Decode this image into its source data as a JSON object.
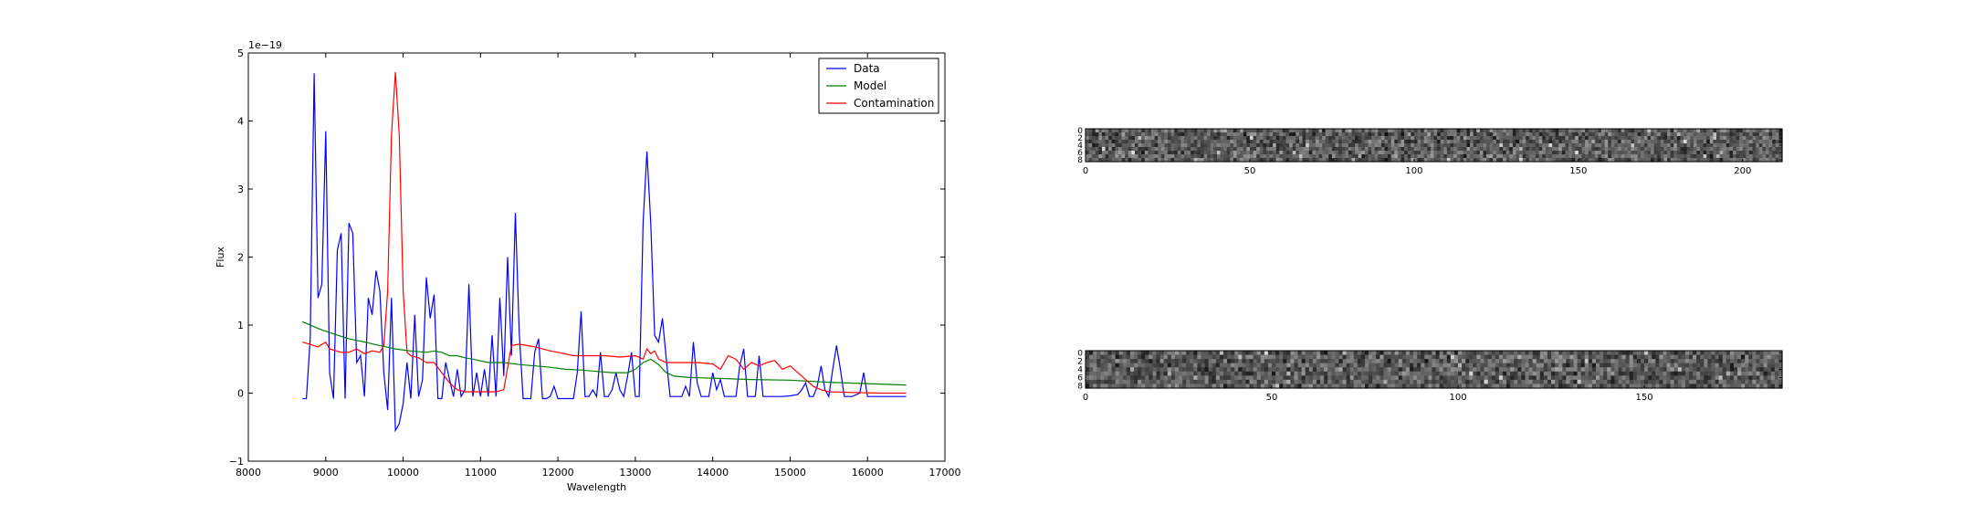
{
  "chart_data": [
    {
      "type": "line",
      "title": "",
      "xlabel": "Wavelength",
      "ylabel": "Flux",
      "y_offset_text": "1e−19",
      "xlim": [
        8000,
        17000
      ],
      "ylim": [
        -1,
        5
      ],
      "x_ticks": [
        8000,
        9000,
        10000,
        11000,
        12000,
        13000,
        14000,
        15000,
        16000,
        17000
      ],
      "y_ticks": [
        -1,
        0,
        1,
        2,
        3,
        4,
        5
      ],
      "grid": false,
      "legend_position": "top-right",
      "series": [
        {
          "name": "Data",
          "color": "#0000ff",
          "points": [
            [
              8700,
              -0.08
            ],
            [
              8750,
              -0.08
            ],
            [
              8800,
              0.8
            ],
            [
              8850,
              4.7
            ],
            [
              8900,
              1.4
            ],
            [
              8950,
              1.6
            ],
            [
              9000,
              3.85
            ],
            [
              9050,
              0.3
            ],
            [
              9100,
              -0.08
            ],
            [
              9150,
              2.1
            ],
            [
              9200,
              2.35
            ],
            [
              9250,
              -0.08
            ],
            [
              9300,
              2.5
            ],
            [
              9350,
              2.35
            ],
            [
              9400,
              0.45
            ],
            [
              9450,
              0.55
            ],
            [
              9500,
              -0.05
            ],
            [
              9550,
              1.4
            ],
            [
              9600,
              1.15
            ],
            [
              9650,
              1.8
            ],
            [
              9700,
              1.5
            ],
            [
              9750,
              0.3
            ],
            [
              9800,
              -0.25
            ],
            [
              9850,
              1.4
            ],
            [
              9900,
              -0.55
            ],
            [
              9950,
              -0.45
            ],
            [
              10000,
              -0.15
            ],
            [
              10050,
              0.45
            ],
            [
              10100,
              -0.08
            ],
            [
              10150,
              1.15
            ],
            [
              10200,
              -0.05
            ],
            [
              10250,
              0.2
            ],
            [
              10300,
              1.7
            ],
            [
              10350,
              1.1
            ],
            [
              10400,
              1.45
            ],
            [
              10450,
              -0.08
            ],
            [
              10500,
              -0.08
            ],
            [
              10550,
              0.45
            ],
            [
              10600,
              0.2
            ],
            [
              10650,
              -0.05
            ],
            [
              10700,
              0.35
            ],
            [
              10750,
              -0.05
            ],
            [
              10800,
              0.05
            ],
            [
              10850,
              1.6
            ],
            [
              10900,
              -0.05
            ],
            [
              10950,
              0.3
            ],
            [
              11000,
              -0.05
            ],
            [
              11050,
              0.35
            ],
            [
              11100,
              -0.05
            ],
            [
              11150,
              0.85
            ],
            [
              11200,
              -0.05
            ],
            [
              11250,
              1.4
            ],
            [
              11300,
              0.25
            ],
            [
              11350,
              2.0
            ],
            [
              11400,
              0.55
            ],
            [
              11450,
              2.65
            ],
            [
              11500,
              0.9
            ],
            [
              11550,
              -0.08
            ],
            [
              11600,
              -0.08
            ],
            [
              11650,
              -0.08
            ],
            [
              11700,
              0.6
            ],
            [
              11750,
              0.8
            ],
            [
              11800,
              -0.08
            ],
            [
              11850,
              -0.08
            ],
            [
              11900,
              -0.05
            ],
            [
              11950,
              0.1
            ],
            [
              12000,
              -0.08
            ],
            [
              12100,
              -0.08
            ],
            [
              12200,
              -0.08
            ],
            [
              12250,
              0.3
            ],
            [
              12300,
              1.2
            ],
            [
              12350,
              -0.05
            ],
            [
              12400,
              -0.05
            ],
            [
              12450,
              0.05
            ],
            [
              12500,
              -0.05
            ],
            [
              12550,
              0.6
            ],
            [
              12600,
              -0.05
            ],
            [
              12650,
              -0.05
            ],
            [
              12700,
              0.05
            ],
            [
              12750,
              0.3
            ],
            [
              12800,
              0.05
            ],
            [
              12850,
              -0.05
            ],
            [
              12900,
              0.25
            ],
            [
              12950,
              0.6
            ],
            [
              13000,
              -0.05
            ],
            [
              13050,
              -0.05
            ],
            [
              13100,
              2.5
            ],
            [
              13150,
              3.55
            ],
            [
              13200,
              2.5
            ],
            [
              13250,
              0.85
            ],
            [
              13300,
              0.75
            ],
            [
              13350,
              1.1
            ],
            [
              13400,
              0.5
            ],
            [
              13450,
              -0.05
            ],
            [
              13500,
              -0.05
            ],
            [
              13600,
              -0.05
            ],
            [
              13650,
              0.1
            ],
            [
              13700,
              -0.05
            ],
            [
              13750,
              0.75
            ],
            [
              13800,
              0.15
            ],
            [
              13850,
              -0.05
            ],
            [
              13900,
              -0.05
            ],
            [
              13950,
              -0.05
            ],
            [
              14000,
              0.3
            ],
            [
              14050,
              0.05
            ],
            [
              14100,
              0.2
            ],
            [
              14150,
              -0.05
            ],
            [
              14200,
              -0.05
            ],
            [
              14300,
              -0.05
            ],
            [
              14350,
              0.4
            ],
            [
              14400,
              0.65
            ],
            [
              14450,
              -0.05
            ],
            [
              14550,
              -0.05
            ],
            [
              14600,
              0.55
            ],
            [
              14650,
              -0.05
            ],
            [
              14750,
              -0.05
            ],
            [
              14900,
              -0.05
            ],
            [
              15000,
              -0.04
            ],
            [
              15100,
              -0.02
            ],
            [
              15150,
              0.05
            ],
            [
              15200,
              0.15
            ],
            [
              15250,
              -0.05
            ],
            [
              15300,
              -0.05
            ],
            [
              15350,
              0.1
            ],
            [
              15400,
              0.4
            ],
            [
              15450,
              0.05
            ],
            [
              15500,
              -0.05
            ],
            [
              15550,
              0.35
            ],
            [
              15600,
              0.7
            ],
            [
              15650,
              0.35
            ],
            [
              15700,
              -0.05
            ],
            [
              15800,
              -0.05
            ],
            [
              15900,
              0.0
            ],
            [
              15950,
              0.3
            ],
            [
              16000,
              -0.05
            ],
            [
              16050,
              -0.05
            ],
            [
              16150,
              -0.05
            ],
            [
              16300,
              -0.05
            ],
            [
              16500,
              -0.05
            ]
          ]
        },
        {
          "name": "Model",
          "color": "#008000",
          "points": [
            [
              8700,
              1.05
            ],
            [
              8900,
              0.95
            ],
            [
              9100,
              0.87
            ],
            [
              9300,
              0.8
            ],
            [
              9500,
              0.75
            ],
            [
              9700,
              0.7
            ],
            [
              9900,
              0.65
            ],
            [
              10100,
              0.62
            ],
            [
              10300,
              0.6
            ],
            [
              10400,
              0.62
            ],
            [
              10500,
              0.6
            ],
            [
              10600,
              0.55
            ],
            [
              10700,
              0.55
            ],
            [
              10800,
              0.52
            ],
            [
              10900,
              0.5
            ],
            [
              11100,
              0.45
            ],
            [
              11300,
              0.45
            ],
            [
              11500,
              0.42
            ],
            [
              11700,
              0.4
            ],
            [
              11900,
              0.38
            ],
            [
              12100,
              0.35
            ],
            [
              12300,
              0.34
            ],
            [
              12500,
              0.32
            ],
            [
              12700,
              0.3
            ],
            [
              12900,
              0.3
            ],
            [
              13000,
              0.35
            ],
            [
              13100,
              0.45
            ],
            [
              13200,
              0.5
            ],
            [
              13300,
              0.42
            ],
            [
              13400,
              0.3
            ],
            [
              13500,
              0.25
            ],
            [
              13700,
              0.23
            ],
            [
              14000,
              0.22
            ],
            [
              14500,
              0.2
            ],
            [
              15000,
              0.19
            ],
            [
              15500,
              0.16
            ],
            [
              16000,
              0.14
            ],
            [
              16500,
              0.12
            ]
          ]
        },
        {
          "name": "Contamination",
          "color": "#ff0000",
          "points": [
            [
              8700,
              0.75
            ],
            [
              8900,
              0.68
            ],
            [
              9000,
              0.75
            ],
            [
              9050,
              0.65
            ],
            [
              9200,
              0.6
            ],
            [
              9300,
              0.6
            ],
            [
              9400,
              0.65
            ],
            [
              9500,
              0.58
            ],
            [
              9600,
              0.62
            ],
            [
              9700,
              0.6
            ],
            [
              9750,
              0.7
            ],
            [
              9800,
              1.5
            ],
            [
              9850,
              3.8
            ],
            [
              9900,
              4.72
            ],
            [
              9950,
              3.8
            ],
            [
              10000,
              1.5
            ],
            [
              10050,
              0.6
            ],
            [
              10100,
              0.55
            ],
            [
              10200,
              0.52
            ],
            [
              10300,
              0.45
            ],
            [
              10400,
              0.45
            ],
            [
              10500,
              0.3
            ],
            [
              10600,
              0.15
            ],
            [
              10700,
              0.05
            ],
            [
              10800,
              0.02
            ],
            [
              11000,
              0.02
            ],
            [
              11200,
              0.02
            ],
            [
              11300,
              0.05
            ],
            [
              11400,
              0.7
            ],
            [
              11500,
              0.72
            ],
            [
              11600,
              0.7
            ],
            [
              11700,
              0.68
            ],
            [
              11800,
              0.65
            ],
            [
              11900,
              0.62
            ],
            [
              12000,
              0.6
            ],
            [
              12200,
              0.55
            ],
            [
              12400,
              0.55
            ],
            [
              12600,
              0.55
            ],
            [
              12800,
              0.53
            ],
            [
              13000,
              0.55
            ],
            [
              13100,
              0.5
            ],
            [
              13150,
              0.65
            ],
            [
              13200,
              0.58
            ],
            [
              13250,
              0.62
            ],
            [
              13300,
              0.5
            ],
            [
              13400,
              0.45
            ],
            [
              13600,
              0.45
            ],
            [
              13800,
              0.45
            ],
            [
              14000,
              0.43
            ],
            [
              14100,
              0.35
            ],
            [
              14200,
              0.55
            ],
            [
              14300,
              0.5
            ],
            [
              14400,
              0.35
            ],
            [
              14500,
              0.45
            ],
            [
              14600,
              0.4
            ],
            [
              14700,
              0.45
            ],
            [
              14800,
              0.48
            ],
            [
              14900,
              0.35
            ],
            [
              15000,
              0.4
            ],
            [
              15100,
              0.3
            ],
            [
              15200,
              0.2
            ],
            [
              15300,
              0.1
            ],
            [
              15400,
              0.05
            ],
            [
              15500,
              0.02
            ],
            [
              15800,
              0.01
            ],
            [
              16200,
              0.0
            ],
            [
              16500,
              0.0
            ]
          ]
        }
      ]
    },
    {
      "type": "heatmap",
      "title": "",
      "xlim": [
        0,
        212
      ],
      "ylim": [
        0,
        9
      ],
      "x_ticks": [
        0,
        50,
        100,
        150,
        200
      ],
      "y_ticks": [
        0,
        2,
        4,
        6,
        8
      ],
      "colormap": "gray",
      "seed": 7
    },
    {
      "type": "heatmap",
      "title": "",
      "xlim": [
        0,
        187
      ],
      "ylim": [
        0,
        9
      ],
      "x_ticks": [
        0,
        50,
        100,
        150
      ],
      "y_ticks": [
        0,
        2,
        4,
        6,
        8
      ],
      "colormap": "gray",
      "seed": 13
    }
  ]
}
